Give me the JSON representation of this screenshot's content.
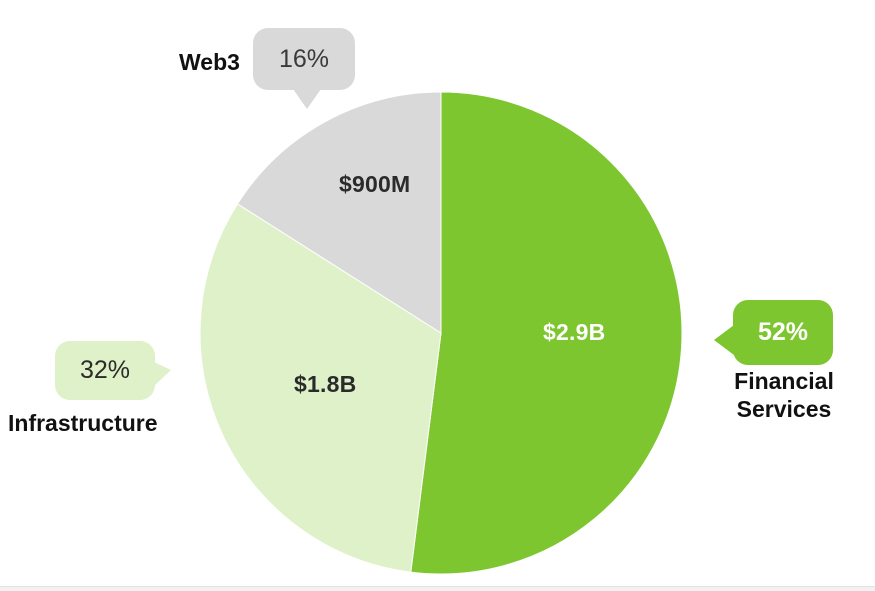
{
  "chart_data": {
    "type": "pie",
    "title": "",
    "direction": "clockwise",
    "start_angle_deg": 0,
    "legend_position": "external-callouts",
    "units": "USD",
    "slices": [
      {
        "id": "financial-services",
        "label": "Financial Services",
        "percent": 52,
        "percent_text": "52%",
        "value": "$2.9B",
        "value_musd": 2900,
        "color": "#7DC62F"
      },
      {
        "id": "infrastructure",
        "label": "Infrastructure",
        "percent": 32,
        "percent_text": "32%",
        "value": "$1.8B",
        "value_musd": 1800,
        "color": "#DFF1C8"
      },
      {
        "id": "web3",
        "label": "Web3",
        "percent": 16,
        "percent_text": "16%",
        "value": "$900M",
        "value_musd": 900,
        "color": "#D9D9D9"
      }
    ]
  },
  "colors": {
    "green": "#7DC62F",
    "light-green": "#DFF1C8",
    "gray": "#D9D9D9",
    "text-dark": "#2B2B2B",
    "white": "#FFFFFF",
    "footer-strip": "#F1F1F1",
    "footer-border": "#E3E3E3"
  }
}
